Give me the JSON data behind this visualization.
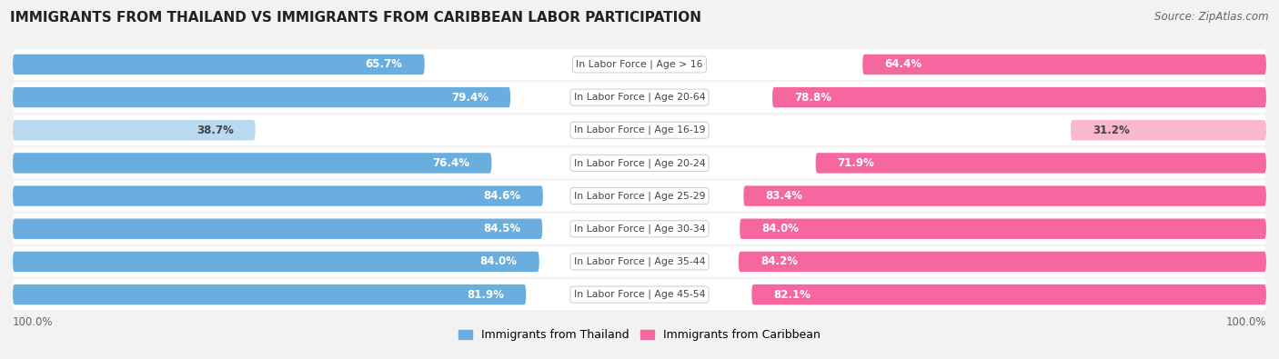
{
  "title": "IMMIGRANTS FROM THAILAND VS IMMIGRANTS FROM CARIBBEAN LABOR PARTICIPATION",
  "source": "Source: ZipAtlas.com",
  "categories": [
    "In Labor Force | Age > 16",
    "In Labor Force | Age 20-64",
    "In Labor Force | Age 16-19",
    "In Labor Force | Age 20-24",
    "In Labor Force | Age 25-29",
    "In Labor Force | Age 30-34",
    "In Labor Force | Age 35-44",
    "In Labor Force | Age 45-54"
  ],
  "thailand_values": [
    65.7,
    79.4,
    38.7,
    76.4,
    84.6,
    84.5,
    84.0,
    81.9
  ],
  "caribbean_values": [
    64.4,
    78.8,
    31.2,
    71.9,
    83.4,
    84.0,
    84.2,
    82.1
  ],
  "thailand_color": "#6aaee0",
  "thailand_color_light": "#b8d9f0",
  "caribbean_color": "#f7679f",
  "caribbean_color_light": "#f9b8d0",
  "bar_height": 0.62,
  "background_color": "#f2f2f2",
  "row_bg_color": "#e8e8e8",
  "row_bar_bg_color": "#ffffff",
  "label_color_white": "#ffffff",
  "label_color_dark": "#444444",
  "center_label_color": "#444444",
  "x_max": 100.0,
  "legend_label_thailand": "Immigrants from Thailand",
  "legend_label_caribbean": "Immigrants from Caribbean",
  "figsize": [
    14.06,
    3.95
  ],
  "dpi": 100
}
